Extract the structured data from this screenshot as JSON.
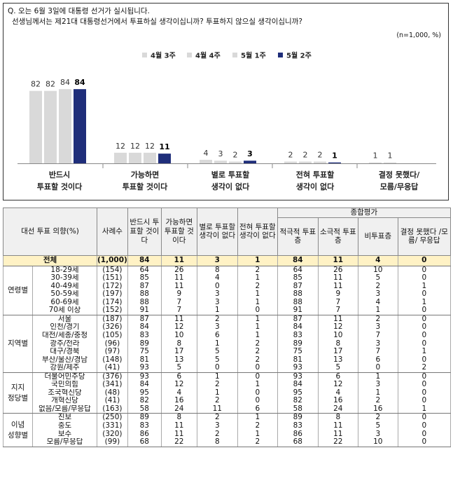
{
  "question": {
    "line1": "Q. 오는 6월 3일에 대통령 선거가 실시됩니다.",
    "line2": "선생님께서는 제21대 대통령선거에서 투표하실 생각이십니까? 투표하지 않으실 생각이십니까?",
    "note": "(n=1,000, %)"
  },
  "colors": {
    "light_bar": "#d9d9d9",
    "dark_bar": "#1f2e7a",
    "highlight_row": "#fff2c5",
    "header_bg": "#f0f0f0"
  },
  "chart_data": {
    "type": "bar",
    "categories": [
      "반드시\n투표할 것이다",
      "가능하면\n투표할 것이다",
      "별로 투표할\n생각이 없다",
      "전혀 투표할\n생각이 없다",
      "결정 못했다/\n모름/무응답"
    ],
    "series": [
      {
        "name": "4월 3주",
        "values": [
          82,
          12,
          4,
          2,
          1
        ]
      },
      {
        "name": "4월 4주",
        "values": [
          82,
          12,
          3,
          2,
          1
        ]
      },
      {
        "name": "5월 1주",
        "values": [
          84,
          12,
          2,
          2,
          null
        ]
      },
      {
        "name": "5월 2주",
        "values": [
          84,
          11,
          3,
          1,
          null
        ]
      }
    ],
    "ylim": [
      0,
      100
    ],
    "legend_position": "top-right",
    "grid": false
  },
  "table": {
    "header": {
      "col_label": "대선 투표 의향(%)",
      "col_n": "사례수",
      "col_must": "반드시 투표할 것이다",
      "col_maybe": "가능하면 투표할 것이다",
      "col_notreally": "별로 투표할 생각이 없다",
      "col_never": "전혀 투표할 생각이 없다",
      "col_summary": "종합평가",
      "col_active": "적극적 투표층",
      "col_passive": "소극적 투표층",
      "col_nonvote": "비투표층",
      "col_undecided": "결정 못했다 /모름/ 무응답"
    },
    "total": {
      "label": "전체",
      "n": "(1,000)",
      "values": [
        "84",
        "11",
        "3",
        "1",
        "84",
        "11",
        "4",
        "0"
      ]
    },
    "groups": [
      {
        "name": "연령별",
        "rows": [
          {
            "label": "18-29세",
            "n": "(154)",
            "values": [
              "64",
              "26",
              "8",
              "2",
              "64",
              "26",
              "10",
              "0"
            ]
          },
          {
            "label": "30-39세",
            "n": "(151)",
            "values": [
              "85",
              "11",
              "4",
              "1",
              "85",
              "11",
              "5",
              "0"
            ]
          },
          {
            "label": "40-49세",
            "n": "(172)",
            "values": [
              "87",
              "11",
              "0",
              "2",
              "87",
              "11",
              "2",
              "1"
            ]
          },
          {
            "label": "50-59세",
            "n": "(197)",
            "values": [
              "88",
              "9",
              "3",
              "1",
              "88",
              "9",
              "3",
              "0"
            ]
          },
          {
            "label": "60-69세",
            "n": "(174)",
            "values": [
              "88",
              "7",
              "3",
              "1",
              "88",
              "7",
              "4",
              "1"
            ]
          },
          {
            "label": "70세 이상",
            "n": "(152)",
            "values": [
              "91",
              "7",
              "1",
              "0",
              "91",
              "7",
              "1",
              "0"
            ]
          }
        ]
      },
      {
        "name": "지역별",
        "rows": [
          {
            "label": "서울",
            "n": "(187)",
            "values": [
              "87",
              "11",
              "2",
              "1",
              "87",
              "11",
              "2",
              "0"
            ]
          },
          {
            "label": "인천/경기",
            "n": "(326)",
            "values": [
              "84",
              "12",
              "3",
              "1",
              "84",
              "12",
              "3",
              "0"
            ]
          },
          {
            "label": "대전/세종/충청",
            "n": "(105)",
            "values": [
              "83",
              "10",
              "6",
              "1",
              "83",
              "10",
              "7",
              "0"
            ]
          },
          {
            "label": "광주/전라",
            "n": "(96)",
            "values": [
              "89",
              "8",
              "1",
              "2",
              "89",
              "8",
              "3",
              "0"
            ]
          },
          {
            "label": "대구/경북",
            "n": "(97)",
            "values": [
              "75",
              "17",
              "5",
              "2",
              "75",
              "17",
              "7",
              "1"
            ]
          },
          {
            "label": "부산/울산/경남",
            "n": "(148)",
            "values": [
              "81",
              "13",
              "5",
              "2",
              "81",
              "13",
              "6",
              "0"
            ]
          },
          {
            "label": "강원/제주",
            "n": "(41)",
            "values": [
              "93",
              "5",
              "0",
              "0",
              "93",
              "5",
              "0",
              "2"
            ]
          }
        ]
      },
      {
        "name": "지지 정당별",
        "rows": [
          {
            "label": "더불어민주당",
            "n": "(376)",
            "values": [
              "93",
              "6",
              "1",
              "0",
              "93",
              "6",
              "1",
              "0"
            ]
          },
          {
            "label": "국민의힘",
            "n": "(341)",
            "values": [
              "84",
              "12",
              "2",
              "1",
              "84",
              "12",
              "3",
              "0"
            ]
          },
          {
            "label": "조국혁신당",
            "n": "(48)",
            "values": [
              "95",
              "4",
              "1",
              "0",
              "95",
              "4",
              "1",
              "0"
            ]
          },
          {
            "label": "개혁신당",
            "n": "(41)",
            "values": [
              "82",
              "16",
              "2",
              "0",
              "82",
              "16",
              "2",
              "0"
            ]
          },
          {
            "label": "없음/모름/무응답",
            "n": "(163)",
            "values": [
              "58",
              "24",
              "11",
              "6",
              "58",
              "24",
              "16",
              "1"
            ]
          }
        ]
      },
      {
        "name": "이념 성향별",
        "rows": [
          {
            "label": "진보",
            "n": "(250)",
            "values": [
              "89",
              "8",
              "2",
              "1",
              "89",
              "8",
              "2",
              "0"
            ]
          },
          {
            "label": "중도",
            "n": "(331)",
            "values": [
              "83",
              "11",
              "3",
              "2",
              "83",
              "11",
              "5",
              "0"
            ]
          },
          {
            "label": "보수",
            "n": "(320)",
            "values": [
              "86",
              "11",
              "2",
              "1",
              "86",
              "11",
              "3",
              "0"
            ]
          },
          {
            "label": "모름/무응답",
            "n": "(99)",
            "values": [
              "68",
              "22",
              "8",
              "2",
              "68",
              "22",
              "10",
              "0"
            ]
          }
        ]
      }
    ]
  }
}
